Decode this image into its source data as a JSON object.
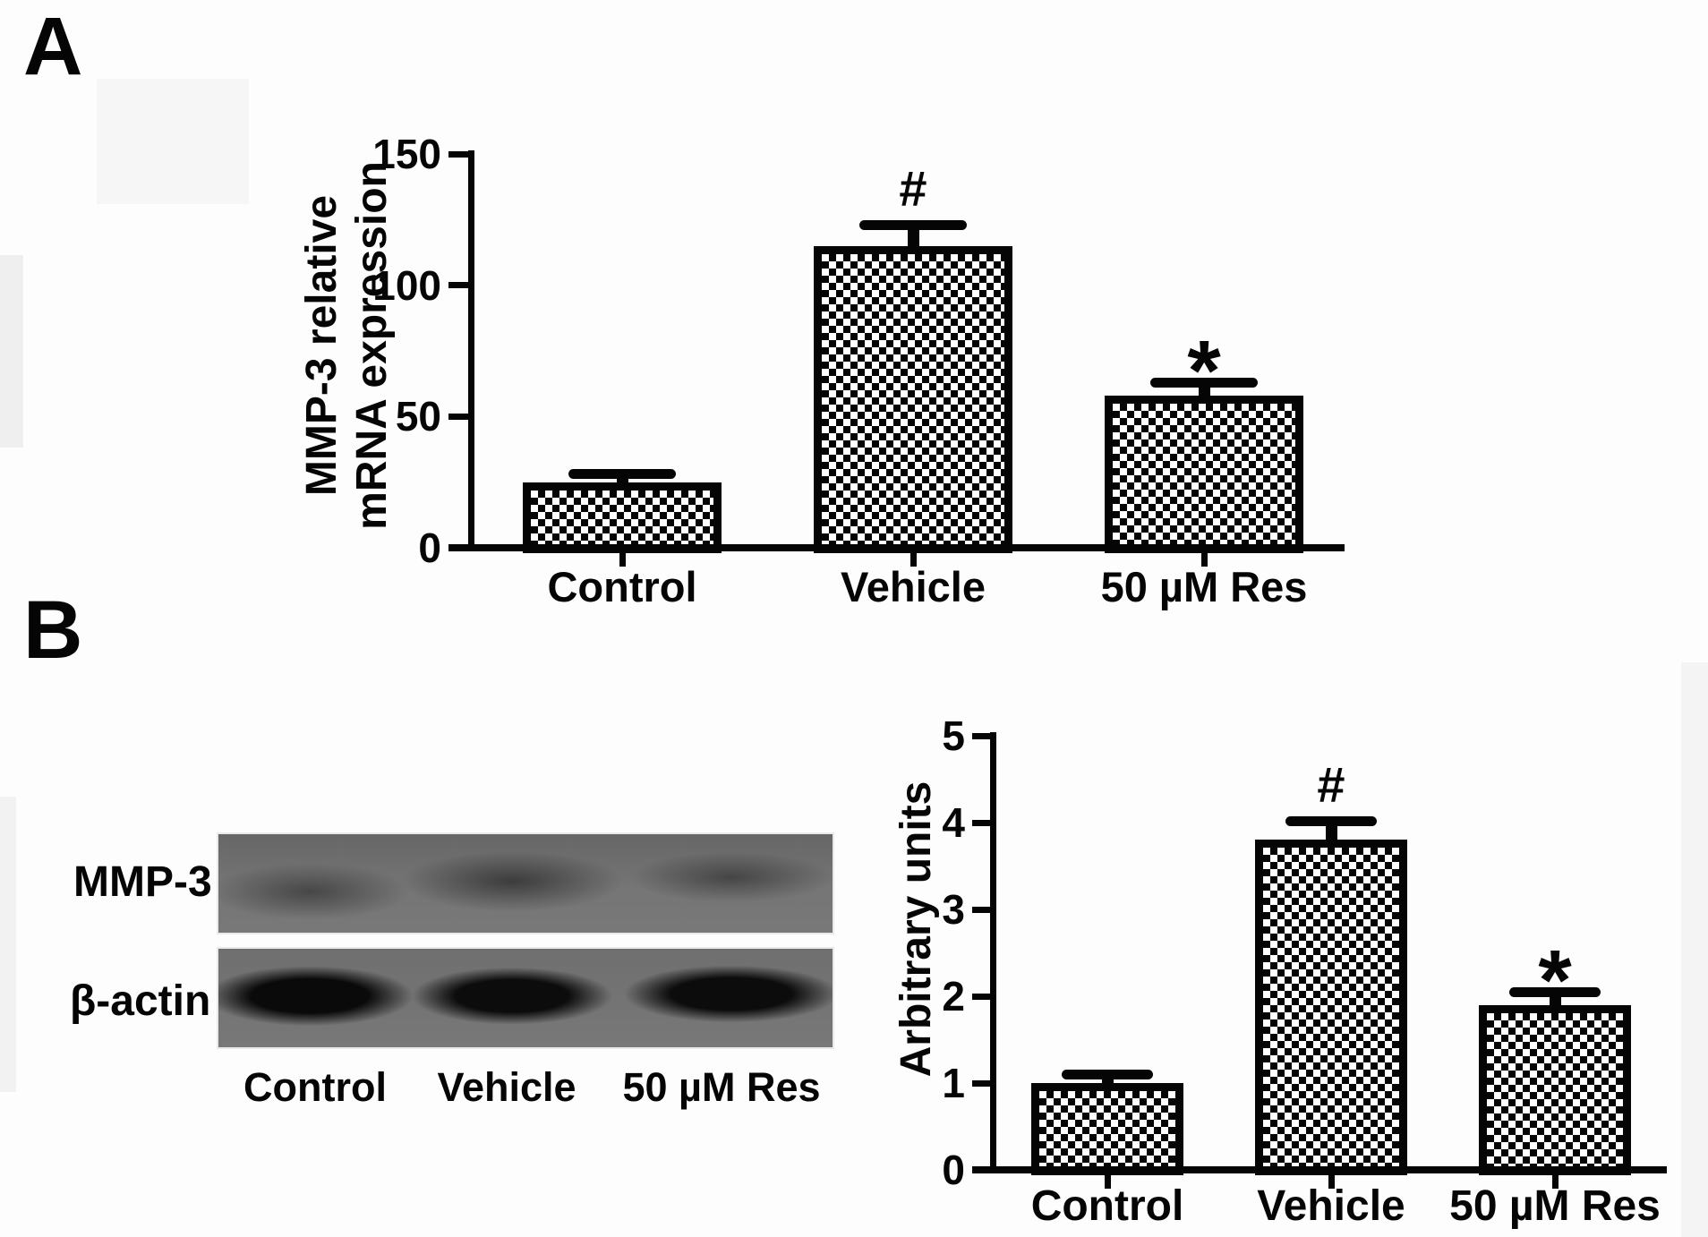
{
  "panel_a_label": "A",
  "panel_b_label": "B",
  "chart_data": [
    {
      "id": "mrna-bar-chart",
      "type": "bar",
      "title": "",
      "ylabel_lines": [
        "MMP-3 relative",
        "mRNA expression"
      ],
      "categories": [
        "Control",
        "Vehicle",
        "50 µM Res"
      ],
      "values": [
        25,
        115,
        58
      ],
      "errors": [
        3,
        8,
        5
      ],
      "annotations": [
        "",
        "#",
        "*"
      ],
      "yticks": [
        0,
        50,
        100,
        150
      ],
      "ylim": [
        0,
        150
      ],
      "grid": false,
      "legend": "none",
      "bar_fill": "black-white-checkerboard",
      "axis_color": "#050505"
    },
    {
      "id": "protein-bar-chart",
      "type": "bar",
      "title": "",
      "ylabel_lines": [
        "Arbitrary units"
      ],
      "categories": [
        "Control",
        "Vehicle",
        "50 µM Res"
      ],
      "values": [
        1.0,
        3.8,
        1.9
      ],
      "errors": [
        0.1,
        0.22,
        0.15
      ],
      "annotations": [
        "",
        "#",
        "*"
      ],
      "yticks": [
        0,
        1,
        2,
        3,
        4,
        5
      ],
      "ylim": [
        0,
        5
      ],
      "grid": false,
      "legend": "none",
      "bar_fill": "black-white-checkerboard",
      "axis_color": "#050505"
    }
  ],
  "blot": {
    "row_labels": [
      "MMP-3",
      "β-actin"
    ],
    "lane_labels": [
      "Control",
      "Vehicle",
      "50 µM Res"
    ]
  }
}
